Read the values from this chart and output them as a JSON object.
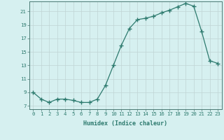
{
  "x": [
    0,
    1,
    2,
    3,
    4,
    5,
    6,
    7,
    8,
    9,
    10,
    11,
    12,
    13,
    14,
    15,
    16,
    17,
    18,
    19,
    20,
    21,
    22,
    23
  ],
  "y": [
    9,
    8,
    7.5,
    8,
    8,
    7.8,
    7.5,
    7.5,
    8,
    10,
    13,
    16,
    18.5,
    19.8,
    20,
    20.3,
    20.8,
    21.2,
    21.7,
    22.2,
    21.8,
    18,
    13.7,
    13.3
  ],
  "xlim": [
    -0.5,
    23.5
  ],
  "ylim": [
    6.5,
    22.5
  ],
  "yticks": [
    7,
    9,
    11,
    13,
    15,
    17,
    19,
    21
  ],
  "xticks": [
    0,
    1,
    2,
    3,
    4,
    5,
    6,
    7,
    8,
    9,
    10,
    11,
    12,
    13,
    14,
    15,
    16,
    17,
    18,
    19,
    20,
    21,
    22,
    23
  ],
  "xlabel": "Humidex (Indice chaleur)",
  "line_color": "#2d7a6e",
  "marker": "+",
  "marker_size": 4.0,
  "bg_color": "#d6f0f0",
  "grid_color": "#c0d4d4",
  "spine_color": "#4a7a74",
  "tick_color": "#2d7a6e",
  "xlabel_fontsize": 6.0,
  "tick_fontsize": 5.2
}
